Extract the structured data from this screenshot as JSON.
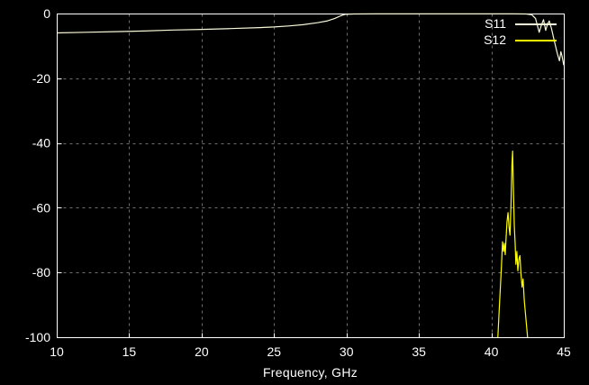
{
  "figure": {
    "background": "#000000",
    "axis_color": "#ffffff",
    "grid_color": "#6e6e6e",
    "text_color": "#ffffff"
  },
  "chart_data": {
    "type": "line",
    "title": "",
    "xlabel": "Frequency, GHz",
    "ylabel": "",
    "xlim": [
      10,
      45
    ],
    "ylim": [
      -100,
      0
    ],
    "xticks": [
      10,
      15,
      20,
      25,
      30,
      35,
      40,
      45
    ],
    "yticks": [
      0,
      -20,
      -40,
      -60,
      -80,
      -100
    ],
    "grid": true,
    "grid_style": "dashed",
    "legend_position": "top-right",
    "series": [
      {
        "name": "S11",
        "color": "#f7f7d9",
        "points": [
          [
            10,
            -6.0
          ],
          [
            12,
            -5.8
          ],
          [
            14,
            -5.6
          ],
          [
            16,
            -5.4
          ],
          [
            18,
            -5.1
          ],
          [
            20,
            -4.9
          ],
          [
            22,
            -4.65
          ],
          [
            24,
            -4.35
          ],
          [
            25,
            -4.15
          ],
          [
            26,
            -3.85
          ],
          [
            27,
            -3.45
          ],
          [
            28,
            -2.85
          ],
          [
            28.7,
            -2.25
          ],
          [
            29.2,
            -1.5
          ],
          [
            29.6,
            -0.7
          ],
          [
            29.9,
            -0.25
          ],
          [
            30.5,
            -0.15
          ],
          [
            32,
            -0.12
          ],
          [
            34,
            -0.1
          ],
          [
            36,
            -0.1
          ],
          [
            38,
            -0.1
          ],
          [
            40,
            -0.1
          ],
          [
            41.5,
            -0.1
          ],
          [
            42.4,
            -0.15
          ],
          [
            42.8,
            -0.4
          ],
          [
            43.05,
            -1.5
          ],
          [
            43.3,
            -5.8
          ],
          [
            43.45,
            -3.6
          ],
          [
            43.6,
            -1.9
          ],
          [
            43.75,
            -5.2
          ],
          [
            43.88,
            -3.2
          ],
          [
            44.0,
            -2.3
          ],
          [
            44.15,
            -4.6
          ],
          [
            44.35,
            -8.5
          ],
          [
            44.55,
            -12.3
          ],
          [
            44.7,
            -14.6
          ],
          [
            44.8,
            -11.8
          ],
          [
            44.88,
            -13.2
          ],
          [
            45,
            -16.0
          ]
        ]
      },
      {
        "name": "S12",
        "color": "#ffff00",
        "points": [
          [
            40.45,
            -100
          ],
          [
            40.55,
            -91
          ],
          [
            40.63,
            -84
          ],
          [
            40.7,
            -78
          ],
          [
            40.77,
            -70.5
          ],
          [
            40.84,
            -73.5
          ],
          [
            40.9,
            -71
          ],
          [
            40.96,
            -74.5
          ],
          [
            41.02,
            -69
          ],
          [
            41.08,
            -64.5
          ],
          [
            41.15,
            -61.5
          ],
          [
            41.22,
            -66
          ],
          [
            41.29,
            -68.5
          ],
          [
            41.36,
            -59
          ],
          [
            41.42,
            -47
          ],
          [
            41.47,
            -42.5
          ],
          [
            41.53,
            -56
          ],
          [
            41.59,
            -66
          ],
          [
            41.64,
            -71
          ],
          [
            41.69,
            -77.5
          ],
          [
            41.76,
            -73.5
          ],
          [
            41.83,
            -79.5
          ],
          [
            41.9,
            -76
          ],
          [
            41.97,
            -74.8
          ],
          [
            42.05,
            -80.5
          ],
          [
            42.12,
            -84.5
          ],
          [
            42.19,
            -82
          ],
          [
            42.27,
            -88.5
          ],
          [
            42.37,
            -93.5
          ],
          [
            42.5,
            -100
          ]
        ]
      }
    ]
  },
  "legend": {
    "items": [
      {
        "label": "S11",
        "color": "#f7f7d9"
      },
      {
        "label": "S12",
        "color": "#ffff00"
      }
    ]
  }
}
